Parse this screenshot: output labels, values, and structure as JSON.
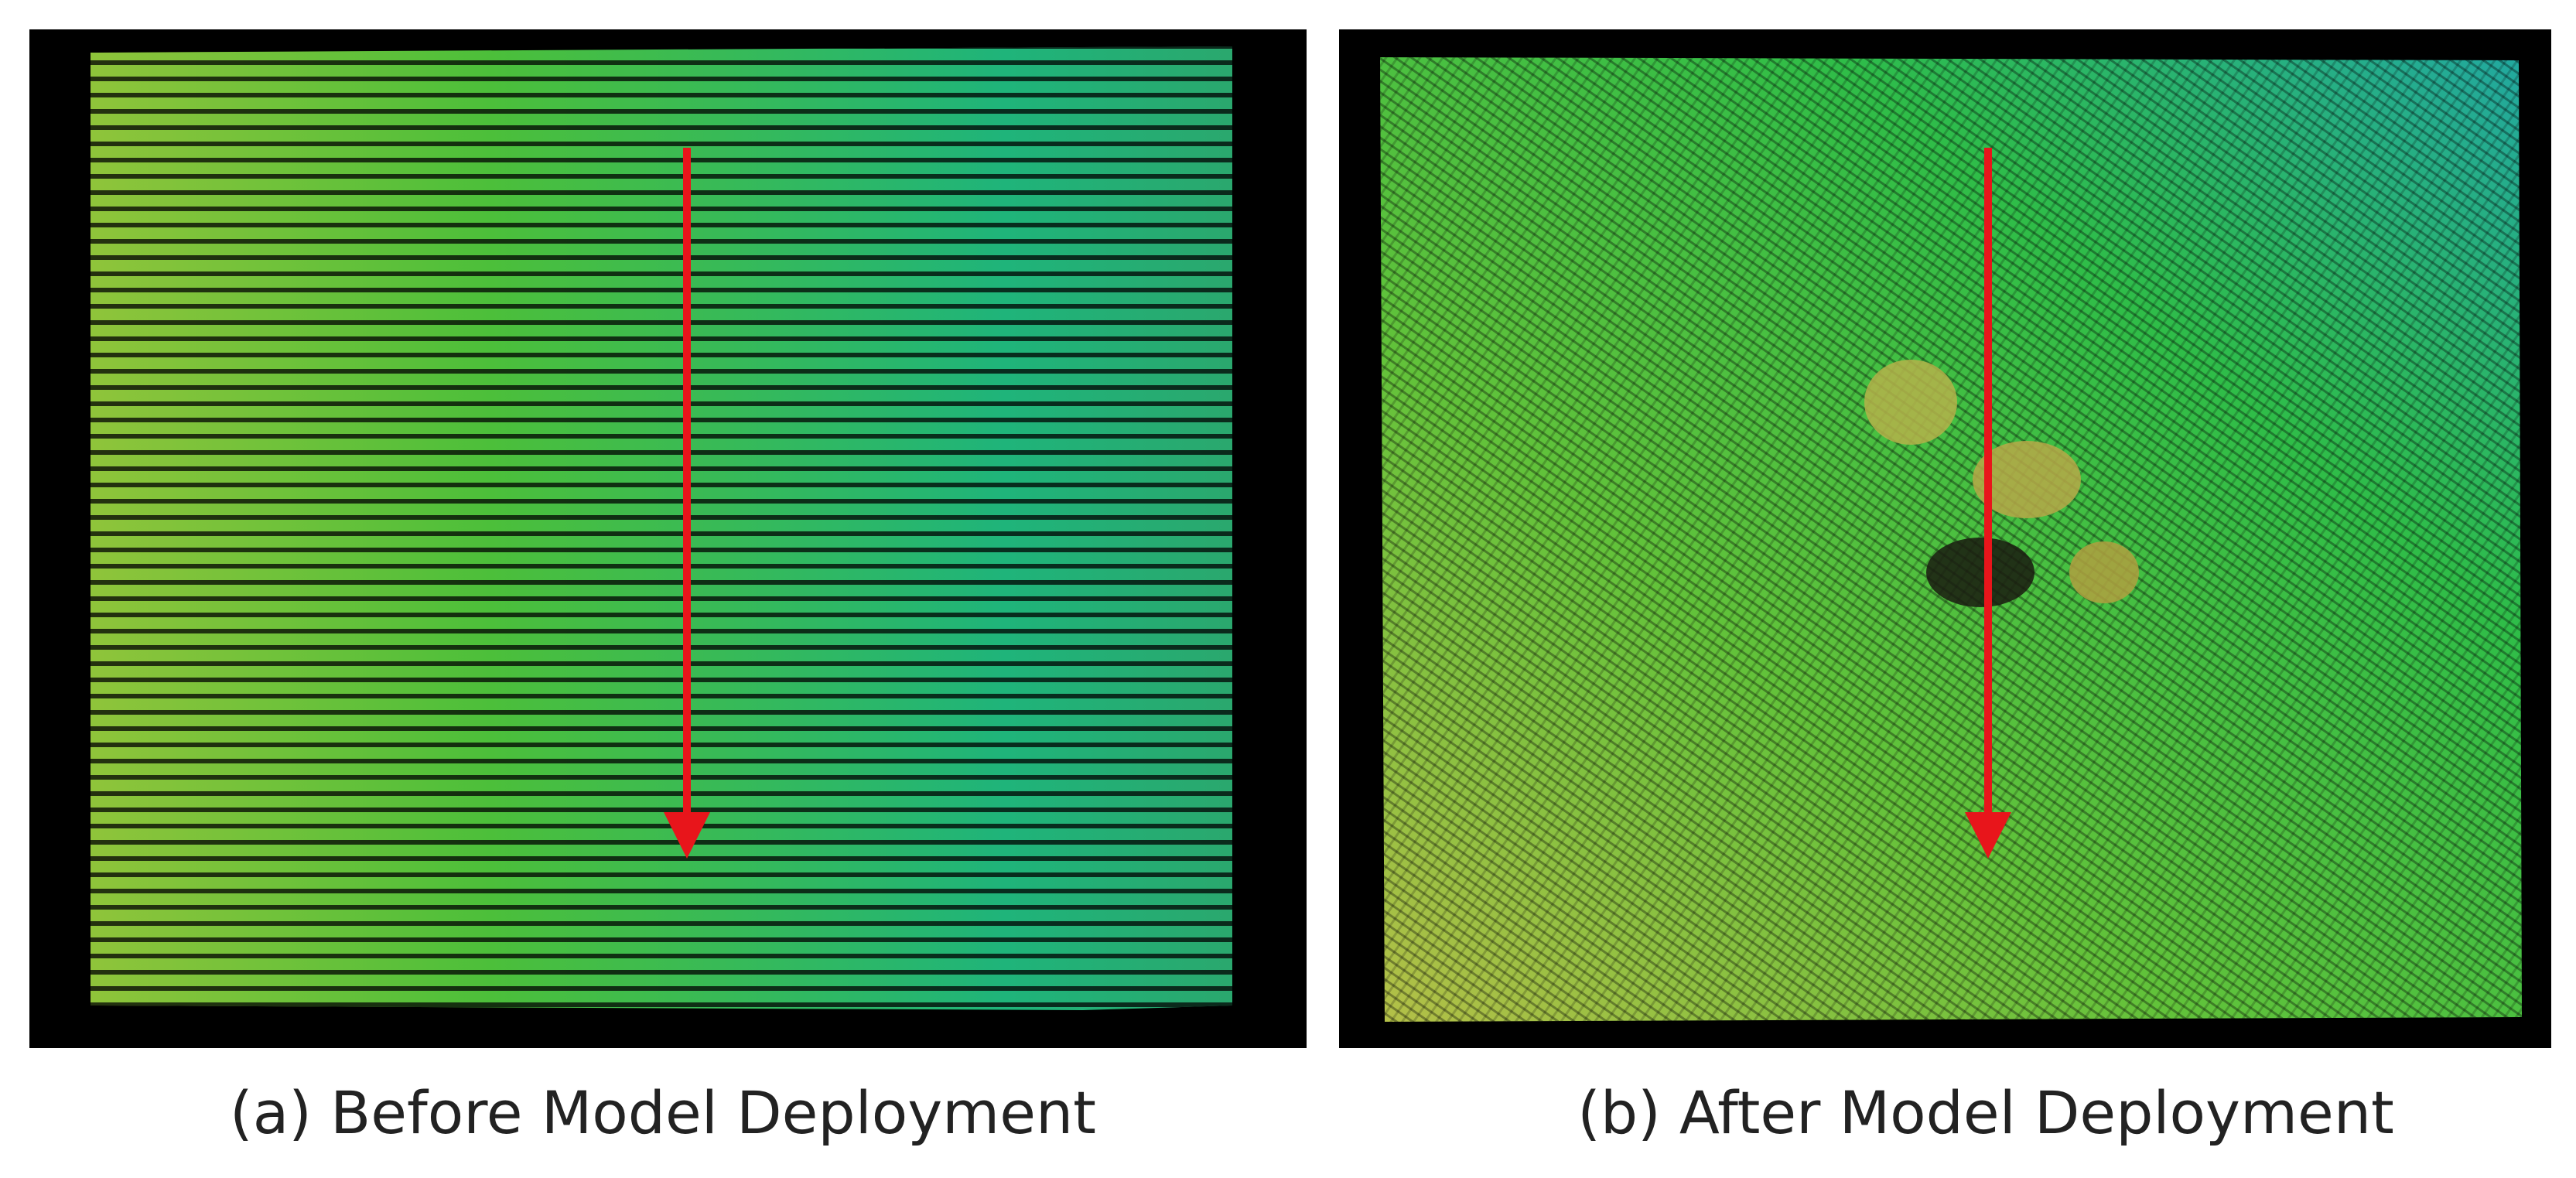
{
  "panels": [
    {
      "caption": "(a) Before Model Deployment"
    },
    {
      "caption": "(b) After Model Deployment"
    }
  ]
}
